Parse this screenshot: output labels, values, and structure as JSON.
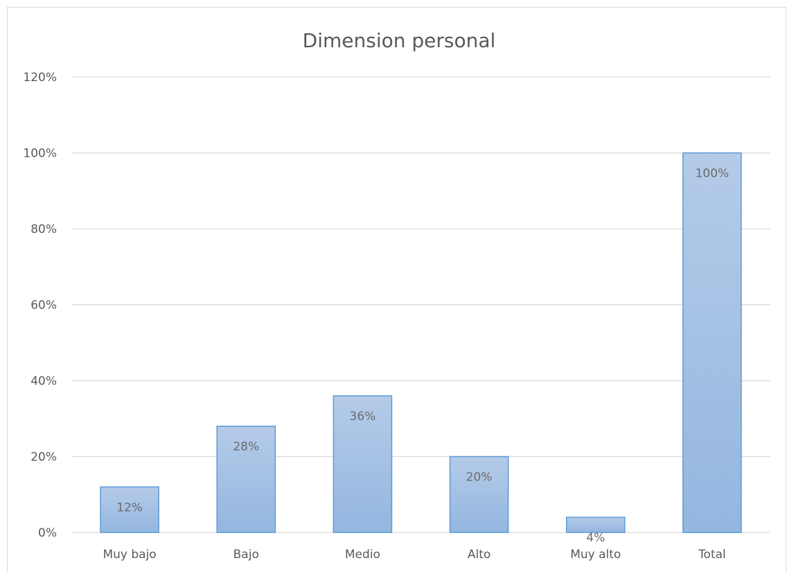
{
  "chart_data": {
    "type": "bar",
    "title": "Dimension personal",
    "categories": [
      "Muy bajo",
      "Bajo",
      "Medio",
      "Alto",
      "Muy alto",
      "Total"
    ],
    "values": [
      12,
      28,
      36,
      20,
      4,
      100
    ],
    "data_labels": [
      "12%",
      "28%",
      "36%",
      "20%",
      "4%",
      "100%"
    ],
    "ylim": [
      0,
      120
    ],
    "yticks": [
      0,
      20,
      40,
      60,
      80,
      100,
      120
    ],
    "ytick_labels": [
      "0%",
      "20%",
      "40%",
      "60%",
      "80%",
      "100%",
      "120%"
    ],
    "xlabel": "",
    "ylabel": "",
    "grid": true,
    "legend": "none",
    "colors": {
      "bar_fill_top": "#b4cbe8",
      "bar_fill_bottom": "#94b6e0",
      "bar_border": "#5b9bd5",
      "grid": "#d9d9d9",
      "text": "#595959"
    }
  }
}
